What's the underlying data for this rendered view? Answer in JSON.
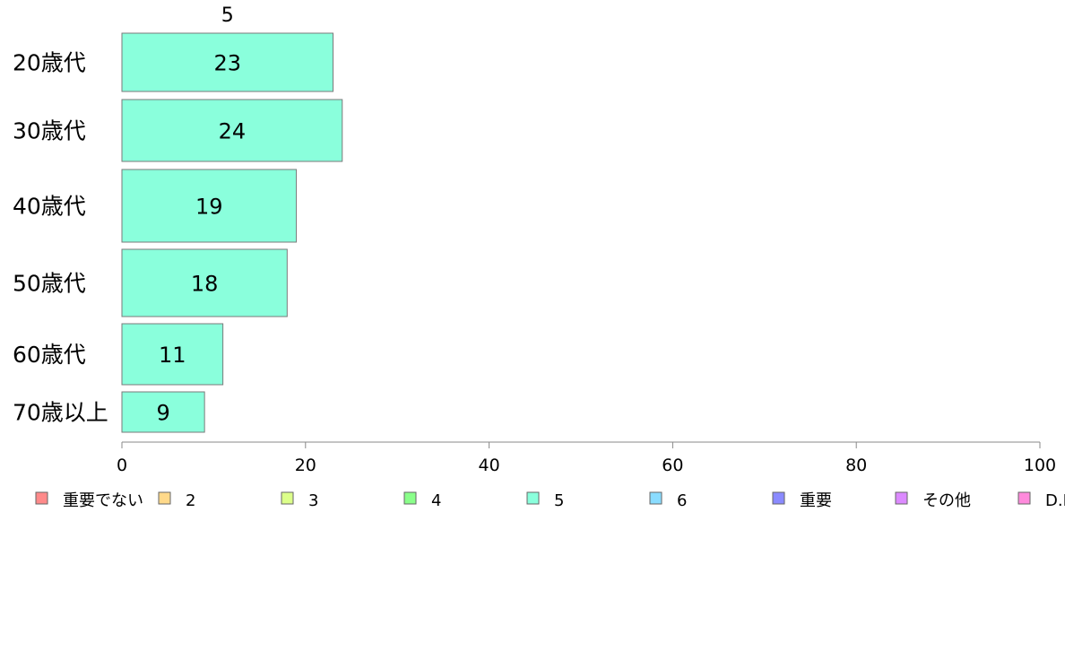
{
  "chart_data": {
    "type": "bar",
    "orientation": "horizontal",
    "stacked": true,
    "title": "",
    "xlabel": "",
    "ylabel": "",
    "xlim": [
      0,
      100
    ],
    "x_ticks": [
      "0",
      "20",
      "40",
      "60",
      "80",
      "100"
    ],
    "categories": [
      "20歳代",
      "30歳代",
      "40歳代",
      "50歳代",
      "60歳代",
      "70歳以上"
    ],
    "series": [
      {
        "name": "5",
        "color": "#8affdc",
        "values": [
          23,
          24,
          19,
          18,
          11,
          9
        ]
      }
    ],
    "segment_labels": [
      "5"
    ],
    "legend": {
      "position": "bottom",
      "items": [
        {
          "label": "重要でない",
          "color": "#ff8a8a"
        },
        {
          "label": "2",
          "color": "#ffd98a"
        },
        {
          "label": "3",
          "color": "#dcff8a"
        },
        {
          "label": "4",
          "color": "#8aff8a"
        },
        {
          "label": "5",
          "color": "#8affdc"
        },
        {
          "label": "6",
          "color": "#8adcff"
        },
        {
          "label": "重要",
          "color": "#8a8aff"
        },
        {
          "label": "その他",
          "color": "#dc8aff"
        },
        {
          "label": "D.K",
          "color": "#ff8adc"
        }
      ]
    },
    "grid": false
  }
}
